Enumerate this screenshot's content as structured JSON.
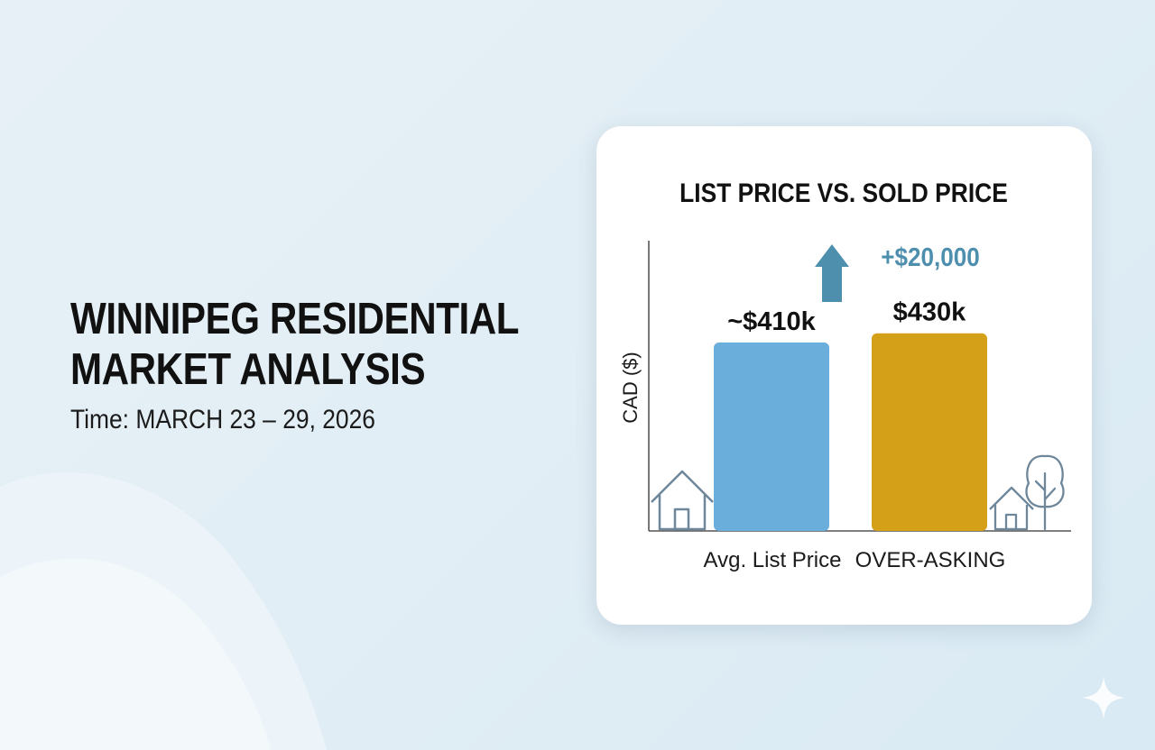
{
  "headline": {
    "title_line1": "WINNIPEG RESIDENTIAL",
    "title_line2": "MARKET ANALYSIS",
    "time": "Time: MARCH 23 – 29, 2026"
  },
  "chart_data": {
    "type": "bar",
    "title": "LIST PRICE VS. SOLD PRICE",
    "ylabel": "CAD ($)",
    "xlabel": "",
    "categories": [
      "Avg. List Price",
      "OVER-ASKING"
    ],
    "values": [
      410000,
      430000
    ],
    "data_labels": [
      "~$410k",
      "$430k"
    ],
    "colors": [
      "#6aaedc",
      "#d4a017"
    ],
    "annotation": {
      "text": "+$20,000",
      "arrow": "up-arrow-icon",
      "color": "#4e8fae"
    },
    "grid": false,
    "legend": "none",
    "icons": [
      "house-icon",
      "house-icon",
      "tree-icon"
    ]
  }
}
